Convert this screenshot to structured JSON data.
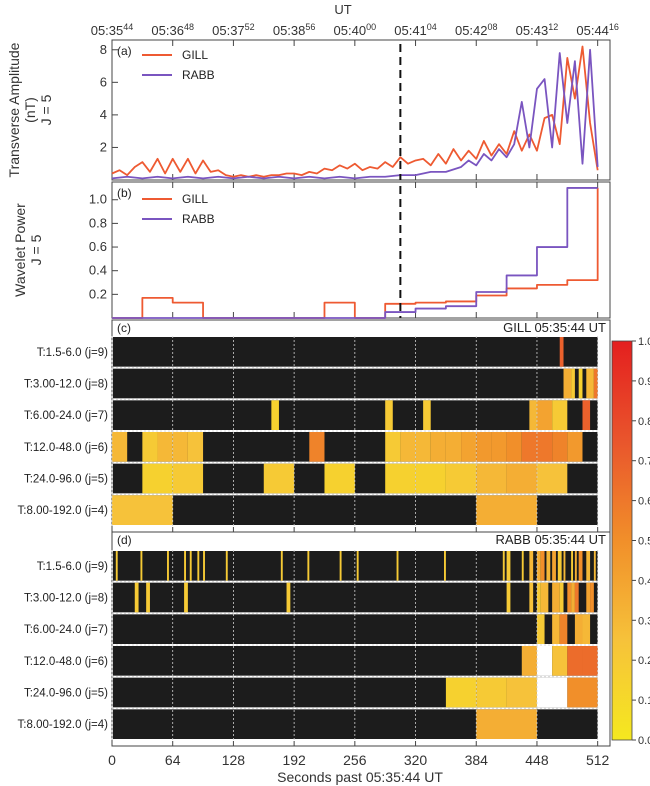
{
  "figure": {
    "ut_axis_title": "UT",
    "x_axis_label": "Seconds past 05:35:44 UT",
    "x_ticks": [
      0,
      64,
      128,
      192,
      256,
      320,
      384,
      448,
      512
    ],
    "ut_ticks": [
      {
        "main": "05:35",
        "sup": "44"
      },
      {
        "main": "05:36",
        "sup": "48"
      },
      {
        "main": "05:37",
        "sup": "52"
      },
      {
        "main": "05:38",
        "sup": "56"
      },
      {
        "main": "05:40",
        "sup": "00"
      },
      {
        "main": "05:41",
        "sup": "04"
      },
      {
        "main": "05:42",
        "sup": "08"
      },
      {
        "main": "05:43",
        "sup": "12"
      },
      {
        "main": "05:44",
        "sup": "16"
      }
    ],
    "event_marker_seconds": 304
  },
  "colors": {
    "gill": "#ee5a32",
    "rabb": "#7a55c0",
    "grid": "#cfcfcf",
    "cell_background": "#1c1c1c",
    "marker": "#111111"
  },
  "chart_data": [
    {
      "type": "line",
      "panel_label": "(a)",
      "ylabel_lines": [
        "Transverse Amplitude",
        "(nT)",
        "J = 5"
      ],
      "x_unit": "seconds past 05:35:44 UT",
      "xlim": [
        0,
        525
      ],
      "ylim": [
        0,
        8.6
      ],
      "y_ticks": [
        2,
        4,
        6,
        8
      ],
      "legend_position": "top-left",
      "series": [
        {
          "name": "GILL",
          "color": "#ee5a32",
          "x": [
            0,
            8,
            16,
            24,
            32,
            40,
            48,
            56,
            64,
            72,
            80,
            88,
            96,
            104,
            112,
            120,
            128,
            136,
            144,
            152,
            160,
            168,
            176,
            184,
            192,
            200,
            208,
            216,
            224,
            232,
            240,
            248,
            256,
            264,
            272,
            280,
            288,
            296,
            304,
            312,
            320,
            328,
            336,
            344,
            352,
            360,
            368,
            376,
            384,
            392,
            400,
            408,
            416,
            424,
            432,
            440,
            448,
            456,
            464,
            472,
            480,
            488,
            496,
            504,
            512
          ],
          "values": [
            0.4,
            0.6,
            0.3,
            0.8,
            1.1,
            0.5,
            1.3,
            0.4,
            1.3,
            0.5,
            1.3,
            0.4,
            1.2,
            0.5,
            0.6,
            0.3,
            0.2,
            0.3,
            0.2,
            0.3,
            0.2,
            0.3,
            0.3,
            0.4,
            0.4,
            0.3,
            0.5,
            0.4,
            0.7,
            0.6,
            0.9,
            0.7,
            1.0,
            0.6,
            0.8,
            0.7,
            1.1,
            0.8,
            1.4,
            1.0,
            1.2,
            1.3,
            0.9,
            1.6,
            1.0,
            1.9,
            1.2,
            1.8,
            1.3,
            2.4,
            1.5,
            2.2,
            1.6,
            3.0,
            1.8,
            2.8,
            1.8,
            3.8,
            4.0,
            2.2,
            7.5,
            5.0,
            8.2,
            3.5,
            0.6
          ]
        },
        {
          "name": "RABB",
          "color": "#7a55c0",
          "x": [
            0,
            16,
            32,
            48,
            64,
            80,
            96,
            112,
            128,
            144,
            160,
            176,
            192,
            208,
            224,
            240,
            256,
            272,
            288,
            304,
            320,
            336,
            352,
            368,
            376,
            384,
            392,
            400,
            408,
            416,
            424,
            432,
            440,
            448,
            456,
            464,
            472,
            480,
            488,
            496,
            504,
            512
          ],
          "values": [
            0.1,
            0.2,
            0.1,
            0.2,
            0.1,
            0.2,
            0.1,
            0.2,
            0.1,
            0.2,
            0.1,
            0.2,
            0.1,
            0.2,
            0.1,
            0.2,
            0.1,
            0.2,
            0.2,
            0.3,
            0.3,
            0.5,
            0.5,
            0.8,
            1.2,
            0.9,
            1.6,
            1.2,
            1.9,
            1.4,
            2.2,
            4.8,
            2.0,
            5.6,
            6.2,
            2.0,
            7.8,
            3.5,
            7.3,
            1.0,
            8.0,
            0.8
          ]
        }
      ]
    },
    {
      "type": "line",
      "step": true,
      "panel_label": "(b)",
      "ylabel_lines": [
        "Wavelet Power",
        "J = 5"
      ],
      "x_unit": "seconds past 05:35:44 UT",
      "xlim": [
        0,
        525
      ],
      "ylim": [
        0,
        1.15
      ],
      "y_ticks": [
        0.2,
        0.4,
        0.6,
        0.8,
        1.0
      ],
      "legend_position": "top-left",
      "series": [
        {
          "name": "GILL",
          "color": "#ee5a32",
          "x": [
            0,
            32,
            64,
            96,
            128,
            160,
            192,
            224,
            256,
            288,
            320,
            352,
            384,
            416,
            448,
            480,
            512
          ],
          "values": [
            0.0,
            0.17,
            0.13,
            0.0,
            0.0,
            0.0,
            0.0,
            0.13,
            0.0,
            0.12,
            0.13,
            0.14,
            0.19,
            0.25,
            0.28,
            0.32,
            1.1
          ]
        },
        {
          "name": "RABB",
          "color": "#7a55c0",
          "x": [
            0,
            32,
            64,
            96,
            128,
            160,
            192,
            224,
            256,
            288,
            320,
            352,
            384,
            416,
            448,
            480,
            512
          ],
          "values": [
            0.0,
            0.0,
            0.0,
            0.0,
            0.0,
            0.0,
            0.0,
            0.0,
            0.0,
            0.05,
            0.08,
            0.1,
            0.22,
            0.36,
            0.6,
            1.1,
            1.1
          ]
        }
      ]
    },
    {
      "type": "heatmap",
      "panel_label": "(c)",
      "title": "GILL 05:35:44 UT",
      "x_unit": "seconds past 05:35:44 UT",
      "xlim": [
        0,
        525
      ],
      "rows": [
        {
          "label": "T:1.5-6.0 (j=9)",
          "cells": [
            [
              472,
              476,
              0.7
            ]
          ]
        },
        {
          "label": "T:3.00-12.0 (j=8)",
          "cells": [
            [
              476,
              484,
              0.35
            ],
            [
              484,
              488,
              0.2
            ],
            [
              492,
              496,
              0.15
            ],
            [
              500,
              508,
              0.3
            ],
            [
              508,
              512,
              0.6
            ]
          ]
        },
        {
          "label": "T:6.00-24.0 (j=7)",
          "cells": [
            [
              168,
              176,
              0.15
            ],
            [
              288,
              296,
              0.2
            ],
            [
              328,
              336,
              0.2
            ],
            [
              440,
              448,
              0.3
            ],
            [
              448,
              464,
              0.4
            ],
            [
              464,
              480,
              0.2
            ],
            [
              496,
              504,
              0.7
            ]
          ]
        },
        {
          "label": "T:12.0-48.0 (j=6)",
          "cells": [
            [
              0,
              16,
              0.3
            ],
            [
              32,
              48,
              0.2
            ],
            [
              48,
              64,
              0.3
            ],
            [
              64,
              80,
              0.3
            ],
            [
              80,
              96,
              0.25
            ],
            [
              208,
              224,
              0.55
            ],
            [
              288,
              304,
              0.2
            ],
            [
              304,
              320,
              0.3
            ],
            [
              320,
              336,
              0.3
            ],
            [
              336,
              352,
              0.35
            ],
            [
              352,
              368,
              0.35
            ],
            [
              368,
              384,
              0.4
            ],
            [
              384,
              400,
              0.45
            ],
            [
              400,
              416,
              0.45
            ],
            [
              416,
              432,
              0.5
            ],
            [
              432,
              448,
              0.6
            ],
            [
              448,
              464,
              0.6
            ],
            [
              464,
              480,
              0.55
            ],
            [
              480,
              496,
              0.45
            ]
          ]
        },
        {
          "label": "T:24.0-96.0 (j=5)",
          "cells": [
            [
              32,
              64,
              0.15
            ],
            [
              64,
              96,
              0.2
            ],
            [
              160,
              192,
              0.2
            ],
            [
              224,
              256,
              0.15
            ],
            [
              288,
              320,
              0.15
            ],
            [
              320,
              352,
              0.15
            ],
            [
              352,
              384,
              0.2
            ],
            [
              384,
              416,
              0.3
            ],
            [
              416,
              448,
              0.35
            ],
            [
              448,
              480,
              0.25
            ]
          ]
        },
        {
          "label": "T:8.00-192.0 (j=4)",
          "cells": [
            [
              0,
              64,
              0.25
            ],
            [
              384,
              448,
              0.35
            ]
          ]
        }
      ]
    },
    {
      "type": "heatmap",
      "panel_label": "(d)",
      "title": "RABB 05:35:44 UT",
      "x_unit": "seconds past 05:35:44 UT",
      "xlim": [
        0,
        525
      ],
      "rows": [
        {
          "label": "T:1.5-6.0 (j=9)",
          "cells": [
            [
              4,
              6,
              0.2
            ],
            [
              30,
              32,
              0.2
            ],
            [
              58,
              60,
              0.2
            ],
            [
              76,
              78,
              0.2
            ],
            [
              82,
              84,
              0.2
            ],
            [
              90,
              92,
              0.2
            ],
            [
              96,
              98,
              0.2
            ],
            [
              120,
              122,
              0.2
            ],
            [
              178,
              180,
              0.2
            ],
            [
              206,
              208,
              0.2
            ],
            [
              240,
              242,
              0.2
            ],
            [
              258,
              260,
              0.2
            ],
            [
              300,
              302,
              0.2
            ],
            [
              350,
              352,
              0.2
            ],
            [
              412,
              414,
              0.2
            ],
            [
              416,
              420,
              0.2
            ],
            [
              432,
              434,
              0.2
            ],
            [
              440,
              444,
              0.3
            ],
            [
              448,
              452,
              0.35
            ],
            [
              452,
              456,
              0.5
            ],
            [
              458,
              462,
              0.3
            ],
            [
              464,
              468,
              0.4
            ],
            [
              470,
              474,
              0.2
            ],
            [
              476,
              478,
              0.3
            ],
            [
              484,
              486,
              0.2
            ],
            [
              488,
              490,
              0.35
            ],
            [
              492,
              496,
              0.5
            ],
            [
              500,
              504,
              0.3
            ],
            [
              508,
              510,
              0.3
            ]
          ]
        },
        {
          "label": "T:3.00-12.0 (j=8)",
          "cells": [
            [
              24,
              28,
              0.2
            ],
            [
              36,
              40,
              0.2
            ],
            [
              76,
              80,
              0.2
            ],
            [
              184,
              188,
              0.2
            ],
            [
              416,
              420,
              0.2
            ],
            [
              440,
              444,
              0.25
            ],
            [
              448,
              452,
              0.2
            ],
            [
              452,
              460,
              0.3
            ],
            [
              464,
              472,
              0.35
            ],
            [
              472,
              476,
              0.2
            ],
            [
              480,
              484,
              0.5
            ],
            [
              484,
              488,
              0.35
            ],
            [
              488,
              492,
              0.6
            ],
            [
              500,
              504,
              0.4
            ],
            [
              504,
              508,
              0.5
            ]
          ]
        },
        {
          "label": "T:6.00-24.0 (j=7)",
          "cells": [
            [
              448,
              456,
              0.2
            ],
            [
              464,
              472,
              0.3
            ],
            [
              472,
              480,
              0.55
            ],
            [
              488,
              496,
              0.35
            ],
            [
              496,
              504,
              0.3
            ]
          ]
        },
        {
          "label": "T:12.0-48.0 (j=6)",
          "cells": [
            [
              432,
              448,
              0.35
            ],
            [
              448,
              464,
              0.0
            ],
            [
              464,
              480,
              0.25
            ],
            [
              480,
              496,
              0.65
            ],
            [
              496,
              512,
              0.65
            ]
          ]
        },
        {
          "label": "T:24.0-96.0 (j=5)",
          "cells": [
            [
              352,
              384,
              0.15
            ],
            [
              384,
              416,
              0.2
            ],
            [
              416,
              448,
              0.25
            ],
            [
              448,
              480,
              0.0
            ],
            [
              480,
              512,
              0.5
            ]
          ]
        },
        {
          "label": "T:8.00-192.0 (j=4)",
          "cells": [
            [
              384,
              448,
              0.35
            ]
          ]
        }
      ]
    },
    {
      "type": "colorbar",
      "range": [
        0,
        1
      ],
      "ticks": [
        "0.0",
        "0.1",
        "0.2",
        "0.3",
        "0.4",
        "0.5",
        "0.6",
        "0.7",
        "0.8",
        "0.9",
        "1.0"
      ],
      "colormap": [
        "#f5e81f",
        "#f6c23a",
        "#f18f2a",
        "#e9552c",
        "#e41f1f"
      ]
    }
  ]
}
